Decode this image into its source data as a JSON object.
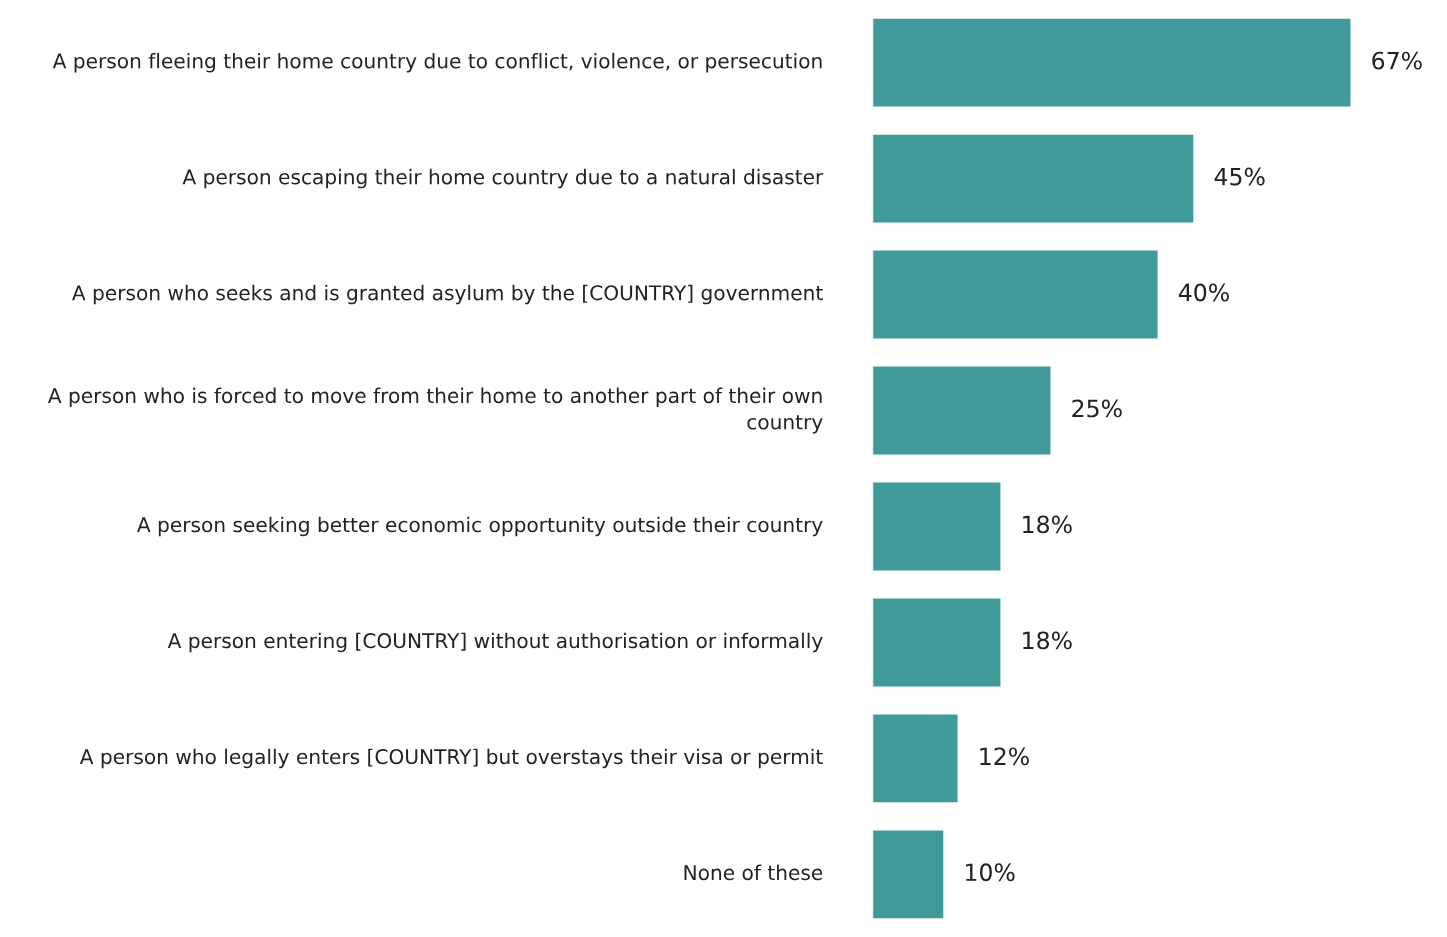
{
  "chart_data": {
    "type": "bar",
    "orientation": "horizontal",
    "color": "#419a9a",
    "categories": [
      "A person fleeing their home country due to conflict, violence, or persecution",
      "A person escaping their home country due to a natural disaster",
      "A person who seeks and is granted asylum by the [COUNTRY] government",
      "A person who is forced to move from their home to another part of their own country",
      "A person seeking better economic opportunity outside their country",
      "A person entering [COUNTRY] without authorisation or informally",
      "A person who legally enters [COUNTRY] but overstays their visa or permit",
      "None of these"
    ],
    "values": [
      67,
      45,
      40,
      25,
      18,
      18,
      12,
      10
    ],
    "value_labels": [
      "67%",
      "45%",
      "40%",
      "25%",
      "18%",
      "18%",
      "12%",
      "10%"
    ],
    "legend": false
  }
}
